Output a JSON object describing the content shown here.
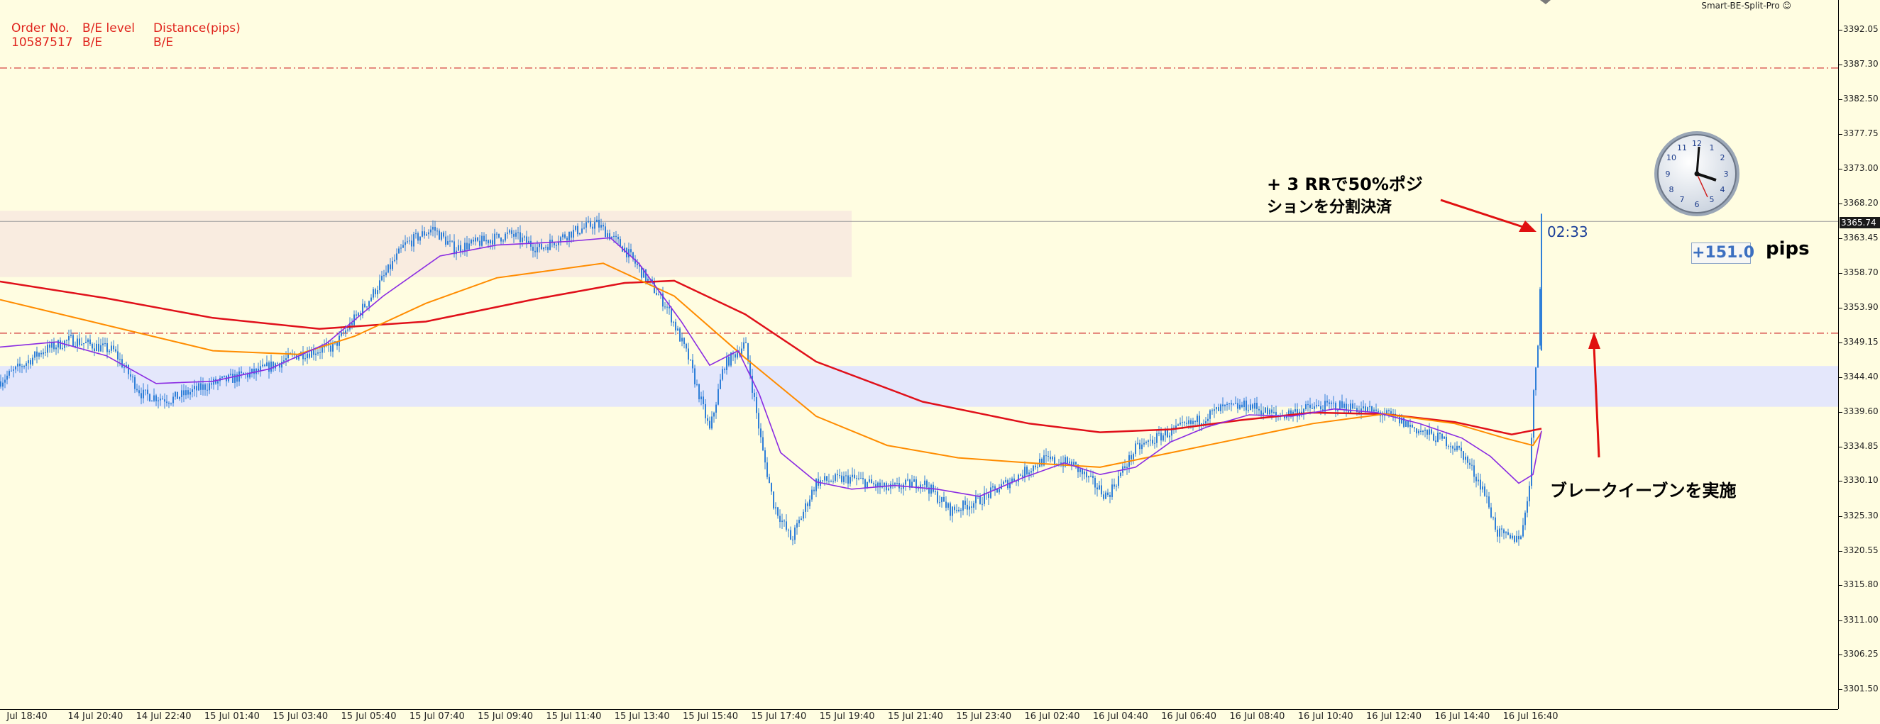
{
  "info_panel": {
    "header": [
      "Order No.",
      "B/E level",
      "Distance(pips)"
    ],
    "row": [
      "10587517",
      "B/E",
      "B/E"
    ]
  },
  "indicator_label": "Smart-BE-Split-Pro ☺",
  "price_axis": {
    "ticks": [
      "3392.05",
      "3387.30",
      "3382.50",
      "3377.75",
      "3373.00",
      "3368.20",
      "3363.45",
      "3358.70",
      "3353.90",
      "3349.15",
      "3344.40",
      "3339.60",
      "3334.85",
      "3330.10",
      "3325.30",
      "3320.55",
      "3315.80",
      "3311.00",
      "3306.25",
      "3301.50"
    ],
    "current_price": "3365.74"
  },
  "time_axis": {
    "labels": [
      "Jul 18:40",
      "14 Jul 20:40",
      "14 Jul 22:40",
      "15 Jul 01:40",
      "15 Jul 03:40",
      "15 Jul 05:40",
      "15 Jul 07:40",
      "15 Jul 09:40",
      "15 Jul 11:40",
      "15 Jul 13:40",
      "15 Jul 15:40",
      "15 Jul 17:40",
      "15 Jul 19:40",
      "15 Jul 21:40",
      "15 Jul 23:40",
      "16 Jul 02:40",
      "16 Jul 04:40",
      "16 Jul 06:40",
      "16 Jul 08:40",
      "16 Jul 10:40",
      "16 Jul 12:40",
      "16 Jul 14:40",
      "16 Jul 16:40"
    ]
  },
  "annotations": {
    "partial_close_line1": "+ 3 RRで50%ポジ",
    "partial_close_line2": "ションを分割決済",
    "break_even": "ブレークイーブンを実施"
  },
  "countdown": "02:33",
  "pips_value": "+151.0",
  "pips_label": "pips",
  "colors": {
    "background": "#fffde1",
    "candle": "#2f7fd8",
    "ma_fast": "#8a2be2",
    "ma_mid": "#ff8c00",
    "ma_slow": "#e0101a",
    "level_line": "#d03030",
    "annotation_arrow": "#e01010",
    "supply_zone": "#f9ece0",
    "demand_zone": "#e4e7fb"
  }
}
